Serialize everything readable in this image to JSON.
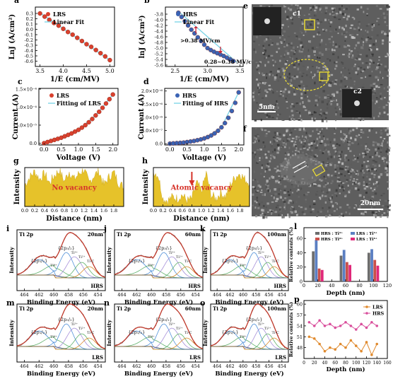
{
  "chart_data": [
    {
      "id": "a",
      "type": "scatter",
      "panel_label": "a",
      "xlabel": "1/E (cm/MV)",
      "ylabel": "LnJ (A/cm²)",
      "xlim": [
        3.4,
        5.1
      ],
      "ylim": [
        -0.7,
        0.42
      ],
      "xticks": [
        "3.5",
        "4.0",
        "4.5",
        "5.0"
      ],
      "yticks": [
        "0.3",
        "0.2",
        "0.1",
        "0.0",
        "-0.1",
        "-0.2",
        "-0.3",
        "-0.4",
        "-0.5",
        "-0.6"
      ],
      "series": [
        {
          "name": "LRS",
          "color": "#d9412e",
          "marker": "circle",
          "x": [
            3.5,
            3.6,
            3.7,
            3.8,
            3.9,
            4.0,
            4.1,
            4.2,
            4.3,
            4.4,
            4.5,
            4.6,
            4.7,
            4.8,
            4.9,
            5.0
          ],
          "y": [
            0.3,
            0.24,
            0.18,
            0.12,
            0.07,
            0.01,
            -0.05,
            -0.1,
            -0.16,
            -0.22,
            -0.28,
            -0.33,
            -0.39,
            -0.45,
            -0.51,
            -0.58
          ]
        },
        {
          "name": "Linear Fit",
          "color": "#7fd6e8",
          "marker": "line",
          "x": [
            3.5,
            5.0
          ],
          "y": [
            0.31,
            -0.58
          ]
        }
      ]
    },
    {
      "id": "b",
      "type": "scatter",
      "panel_label": "b",
      "xlabel": "1/E (cm/MV)",
      "ylabel": "lnJ (A/cm²)",
      "xlim": [
        2.35,
        3.55
      ],
      "ylim": [
        -5.65,
        -3.55
      ],
      "xticks": [
        "2.5",
        "3.0",
        "3.5"
      ],
      "yticks": [
        "-3.8",
        "-4.0",
        "-4.2",
        "-4.4",
        "-4.6",
        "-4.8",
        "-5.0",
        "-5.2",
        "-5.4",
        "-5.6"
      ],
      "annotations": [
        ">0.38 MV/cm",
        "0.28~0.38 MV/cm"
      ],
      "series": [
        {
          "name": "HRS",
          "color": "#3a63b4",
          "marker": "circle",
          "x": [
            2.55,
            2.6,
            2.65,
            2.7,
            2.75,
            2.8,
            2.85,
            2.9,
            2.95,
            3.0,
            3.05,
            3.1,
            3.15,
            3.2,
            3.25,
            3.3,
            3.35,
            3.4
          ],
          "y": [
            -3.75,
            -3.9,
            -4.05,
            -4.2,
            -4.35,
            -4.48,
            -4.62,
            -4.75,
            -4.88,
            -5.0,
            -5.07,
            -5.13,
            -5.18,
            -5.23,
            -5.28,
            -5.34,
            -5.4,
            -5.46
          ]
        },
        {
          "name": "Linear Fit",
          "color": "#7fd6e8",
          "marker": "line",
          "x": [
            2.55,
            3.45
          ],
          "y": [
            -3.7,
            -5.5
          ]
        }
      ]
    },
    {
      "id": "c",
      "type": "scatter",
      "panel_label": "c",
      "xlabel": "Voltage (V)",
      "ylabel": "Current (A)",
      "xlim": [
        -0.15,
        2.15
      ],
      "ylim": [
        -0.05,
        1.52
      ],
      "xticks": [
        "0.0",
        "0.5",
        "1.0",
        "1.5",
        "2.0"
      ],
      "yticks": [
        "0.0",
        "5.0×10⁻⁵",
        "1.0×10⁻⁴",
        "1.5×10⁻⁴"
      ],
      "series": [
        {
          "name": "LRS",
          "color": "#d9412e",
          "marker": "circle",
          "shape": "exp",
          "x": [
            0,
            0.1,
            0.2,
            0.3,
            0.4,
            0.5,
            0.6,
            0.7,
            0.8,
            0.9,
            1.0,
            1.1,
            1.2,
            1.3,
            1.4,
            1.5,
            1.6,
            1.7,
            1.8,
            1.9,
            2.0
          ],
          "y": [
            0.0,
            0.03,
            0.06,
            0.09,
            0.12,
            0.15,
            0.19,
            0.23,
            0.27,
            0.32,
            0.37,
            0.43,
            0.5,
            0.58,
            0.67,
            0.77,
            0.87,
            0.98,
            1.1,
            1.22,
            1.35
          ]
        },
        {
          "name": "Fitting of LRS",
          "color": "#7fd6e8",
          "marker": "line",
          "x": [
            0,
            0.5,
            1.0,
            1.5,
            2.0
          ],
          "y": [
            0.0,
            0.15,
            0.37,
            0.77,
            1.35
          ]
        }
      ]
    },
    {
      "id": "d",
      "type": "scatter",
      "panel_label": "d",
      "xlabel": "Voltage (V)",
      "ylabel": "Current (A)",
      "xlim": [
        -0.15,
        2.15
      ],
      "ylim": [
        -0.05,
        2.1
      ],
      "xticks": [
        "0.0",
        "0.5",
        "1.0",
        "1.5",
        "2.0"
      ],
      "yticks": [
        "0.0",
        "5.0×10⁻⁷",
        "1.0×10⁻⁶",
        "1.5×10⁻⁶",
        "2.0×10⁻⁶"
      ],
      "series": [
        {
          "name": "HRS",
          "color": "#3a63b4",
          "marker": "circle",
          "x": [
            0,
            0.1,
            0.2,
            0.3,
            0.4,
            0.5,
            0.6,
            0.7,
            0.8,
            0.9,
            1.0,
            1.1,
            1.2,
            1.3,
            1.4,
            1.5,
            1.6,
            1.7,
            1.8,
            1.9,
            2.0
          ],
          "y": [
            0.0,
            0.01,
            0.02,
            0.03,
            0.04,
            0.06,
            0.08,
            0.1,
            0.13,
            0.16,
            0.2,
            0.25,
            0.31,
            0.39,
            0.49,
            0.62,
            0.78,
            0.98,
            1.24,
            1.55,
            1.95
          ]
        },
        {
          "name": "Fitting of HRS",
          "color": "#7fd6e8",
          "marker": "line",
          "x": [
            0,
            0.5,
            1.0,
            1.5,
            2.0
          ],
          "y": [
            0.0,
            0.06,
            0.2,
            0.62,
            1.95
          ]
        }
      ]
    },
    {
      "id": "g",
      "type": "area",
      "panel_label": "g",
      "xlabel": "Distance (nm)",
      "ylabel": "Intensity",
      "xlim": [
        0,
        2.0
      ],
      "ylim": [
        0,
        1
      ],
      "xticks": [
        "0.0",
        "0.2",
        "0.4",
        "0.6",
        "0.8",
        "1.0",
        "1.2",
        "1.4",
        "1.6",
        "1.8"
      ],
      "annotation": "No vacancy",
      "x": [
        0,
        0.1,
        0.2,
        0.3,
        0.4,
        0.5,
        0.6,
        0.7,
        0.8,
        0.9,
        1.0,
        1.1,
        1.2,
        1.3,
        1.4,
        1.5,
        1.6,
        1.7,
        1.8,
        1.9,
        2.0
      ],
      "y": [
        0.55,
        0.75,
        0.9,
        0.7,
        0.85,
        0.6,
        0.8,
        0.92,
        0.65,
        0.9,
        0.7,
        0.85,
        0.95,
        0.6,
        0.8,
        0.9,
        0.55,
        0.75,
        0.88,
        0.6,
        0.5
      ]
    },
    {
      "id": "h",
      "type": "area",
      "panel_label": "h",
      "xlabel": "Distance (nm)",
      "ylabel": "Intensity",
      "xlim": [
        0,
        2.0
      ],
      "ylim": [
        0,
        1
      ],
      "xticks": [
        "0.0",
        "0.2",
        "0.4",
        "0.6",
        "0.8",
        "1.0",
        "1.2",
        "1.4",
        "1.6",
        "1.8"
      ],
      "annotation": "Atomic vacancy",
      "x": [
        0,
        0.1,
        0.2,
        0.3,
        0.4,
        0.5,
        0.6,
        0.7,
        0.8,
        0.9,
        1.0,
        1.1,
        1.2,
        1.3,
        1.4,
        1.5,
        1.6,
        1.7,
        1.8,
        1.9,
        2.0
      ],
      "y": [
        0.9,
        0.8,
        0.2,
        0.15,
        0.25,
        0.2,
        0.3,
        0.15,
        0.2,
        0.6,
        0.4,
        0.85,
        0.3,
        0.2,
        0.35,
        0.25,
        0.55,
        0.75,
        0.85,
        0.7,
        0.6
      ]
    },
    {
      "id": "i",
      "type": "line",
      "panel_label": "i",
      "xlabel": "Binding Energy (eV)",
      "ylabel": "Intensity",
      "corner_left": "Ti 2p",
      "corner_right": "20nm",
      "state": "HRS",
      "peaks": [
        "{2p₁/₂}",
        "Ti⁴⁺",
        "{2p₃/₂}",
        "Ti³⁺",
        "Ti²⁺",
        "Ti-C"
      ],
      "xticks": [
        "464",
        "462",
        "460",
        "458",
        "456",
        "454"
      ]
    },
    {
      "id": "j",
      "type": "line",
      "panel_label": "j",
      "xlabel": "Binding Energy (eV)",
      "ylabel": "Intensity",
      "corner_left": "Ti 2p",
      "corner_right": "60nm",
      "state": "HRS",
      "peaks": [
        "{2p₁/₂}",
        "Ti⁴⁺",
        "{2p₃/₂}",
        "Ti³⁺",
        "Ti²⁺",
        "Ti-C"
      ],
      "xticks": [
        "464",
        "462",
        "460",
        "458",
        "456",
        "454"
      ]
    },
    {
      "id": "k",
      "type": "line",
      "panel_label": "k",
      "xlabel": "Binding Energy (eV)",
      "ylabel": "Intensity",
      "corner_left": "Ti 2p",
      "corner_right": "100nm",
      "state": "HRS",
      "peaks": [
        "{2p₁/₂}",
        "Ti⁴⁺",
        "{2p₃/₂}",
        "Ti³⁺",
        "Ti²⁺",
        "Ti-C"
      ],
      "xticks": [
        "464",
        "462",
        "460",
        "458",
        "456",
        "454"
      ]
    },
    {
      "id": "l",
      "type": "bar",
      "panel_label": "l",
      "xlabel": "Depth (nm)",
      "ylabel": "Relative contents (%)",
      "categories": [
        "20",
        "60",
        "100"
      ],
      "xticks": [
        "0",
        "20",
        "40",
        "60",
        "80",
        "100",
        "120"
      ],
      "yticks": [
        "0",
        "20",
        "40",
        "60"
      ],
      "ylim": [
        0,
        75
      ],
      "series": [
        {
          "name": "HRS : Ti³⁺",
          "color": "#6d6d6d",
          "values": [
            42,
            36,
            40
          ]
        },
        {
          "name": "LRS : Ti³⁺",
          "color": "#5b7fc2",
          "values": [
            58,
            44,
            45
          ]
        },
        {
          "name": "HRS : Ti⁴⁺",
          "color": "#c9504a",
          "values": [
            18,
            27,
            30
          ]
        },
        {
          "name": "LRS : Ti⁴⁺",
          "color": "#e0287a",
          "values": [
            16,
            23,
            22
          ]
        }
      ]
    },
    {
      "id": "m",
      "type": "line",
      "panel_label": "m",
      "xlabel": "Binding Energy (eV)",
      "ylabel": "Intensity",
      "corner_left": "Ti 2p",
      "corner_right": "20nm",
      "state": "LRS",
      "peaks": [
        "{2p₁/₂}",
        "Ti⁴⁺",
        "{2p₃/₂}",
        "Ti³⁺",
        "Ti²⁺",
        "Ti-C"
      ],
      "xticks": [
        "464",
        "462",
        "460",
        "458",
        "456",
        "454"
      ]
    },
    {
      "id": "n",
      "type": "line",
      "panel_label": "n",
      "xlabel": "Binding Energy (eV)",
      "ylabel": "Intensity",
      "corner_left": "Ti 2p",
      "corner_right": "60nm",
      "state": "LRS",
      "peaks": [
        "{2p₁/₂}",
        "Ti⁴⁺",
        "{2p₃/₂}",
        "Ti³⁺",
        "Ti²⁺",
        "Ti-C"
      ],
      "xticks": [
        "464",
        "462",
        "460",
        "458",
        "456",
        "454"
      ]
    },
    {
      "id": "o",
      "type": "line",
      "panel_label": "o",
      "xlabel": "Binding Energy (eV)",
      "ylabel": "Intensity",
      "corner_left": "Ti 2p",
      "corner_right": "100nm",
      "state": "LRS",
      "peaks": [
        "{2p₁/₂}",
        "Ti⁴⁺",
        "{2p₃/₂}",
        "Ti³⁺",
        "Ti²⁺",
        "Ti-C"
      ],
      "xticks": [
        "464",
        "462",
        "460",
        "458",
        "456",
        "454"
      ]
    },
    {
      "id": "p",
      "type": "line",
      "panel_label": "p",
      "xlabel": "Depth (nm)",
      "ylabel": "Relative contents (%)",
      "xlim": [
        0,
        160
      ],
      "ylim": [
        45,
        61
      ],
      "xticks": [
        "0",
        "20",
        "40",
        "60",
        "80",
        "100",
        "120",
        "140",
        "160"
      ],
      "yticks": [
        "48",
        "51",
        "54",
        "57",
        "60"
      ],
      "series": [
        {
          "name": "LRS",
          "color": "#e08a2e",
          "x": [
            10,
            20,
            30,
            40,
            50,
            60,
            70,
            80,
            90,
            100,
            110,
            120,
            130,
            140
          ],
          "y": [
            51,
            50.5,
            49,
            47,
            48,
            47.5,
            49,
            48,
            50,
            48.5,
            47,
            49.5,
            46,
            49
          ]
        },
        {
          "name": "HRS",
          "color": "#d94f9c",
          "x": [
            10,
            20,
            30,
            40,
            50,
            60,
            70,
            80,
            90,
            100,
            110,
            120,
            130,
            140
          ],
          "y": [
            55,
            54,
            55.5,
            54,
            54.5,
            53.5,
            54,
            55,
            54,
            53,
            54.5,
            53.5,
            55,
            54
          ]
        }
      ]
    }
  ],
  "tem": {
    "e": {
      "panel_label": "e",
      "labels": [
        "c1",
        "c2"
      ],
      "scale": "5nm"
    },
    "f": {
      "panel_label": "f",
      "scale": "20nm"
    }
  }
}
